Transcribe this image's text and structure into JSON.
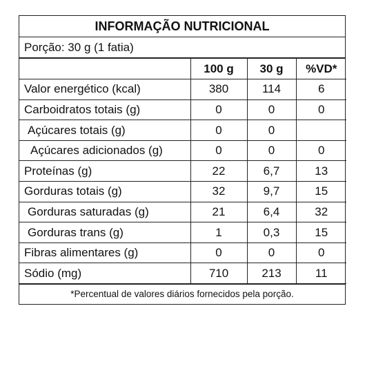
{
  "title": "INFORMAÇÃO NUTRICIONAL",
  "portion": "Porção: 30 g (1 fatia)",
  "columns": [
    "100 g",
    "30 g",
    "%VD*"
  ],
  "rows": [
    {
      "name": "Valor energético (kcal)",
      "v100": "380",
      "v30": "114",
      "vd": "6"
    },
    {
      "name": "Carboidratos totais (g)",
      "v100": "0",
      "v30": "0",
      "vd": "0"
    },
    {
      "name": "Açúcares totais (g)",
      "v100": "0",
      "v30": "0",
      "vd": ""
    },
    {
      "name": "Açúcares adicionados (g)",
      "v100": "0",
      "v30": "0",
      "vd": "0"
    },
    {
      "name": "Proteínas (g)",
      "v100": "22",
      "v30": "6,7",
      "vd": "13"
    },
    {
      "name": "Gorduras totais (g)",
      "v100": "32",
      "v30": "9,7",
      "vd": "15"
    },
    {
      "name": "Gorduras saturadas (g)",
      "v100": "21",
      "v30": "6,4",
      "vd": "32"
    },
    {
      "name": "Gorduras trans (g)",
      "v100": "1",
      "v30": "0,3",
      "vd": "15"
    },
    {
      "name": "Fibras alimentares (g)",
      "v100": "0",
      "v30": "0",
      "vd": "0"
    },
    {
      "name": "Sódio (mg)",
      "v100": "710",
      "v30": "213",
      "vd": "11"
    }
  ],
  "footnote": "*Percentual de valores diários fornecidos pela porção."
}
